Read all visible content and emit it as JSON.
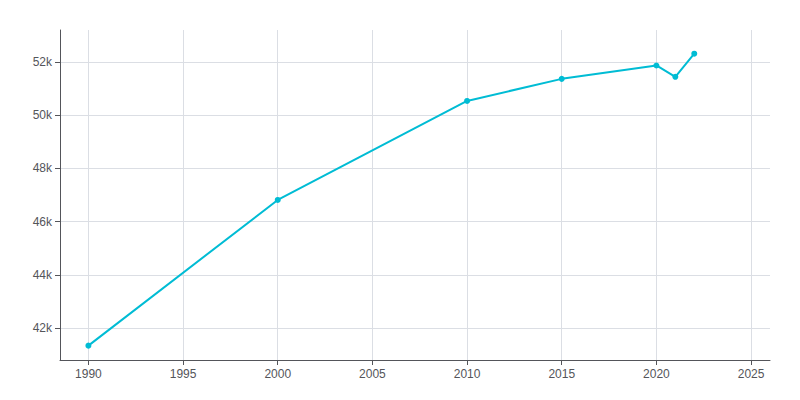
{
  "chart_data": {
    "type": "line",
    "x": [
      1990,
      2000,
      2010,
      2015,
      2020,
      2021,
      2022
    ],
    "values": [
      41340,
      46815,
      50534,
      51364,
      51867,
      51442,
      52311
    ],
    "color": "#00bcd4",
    "marker": "circle",
    "xlim": [
      1988.5,
      2026
    ],
    "xticks": [
      1990,
      1995,
      2000,
      2005,
      2010,
      2015,
      2020,
      2025
    ],
    "ylim": [
      40800,
      53200
    ],
    "yticks": [
      {
        "value": 42000,
        "label": "42k"
      },
      {
        "value": 44000,
        "label": "44k"
      },
      {
        "value": 46000,
        "label": "46k"
      },
      {
        "value": 48000,
        "label": "48k"
      },
      {
        "value": 50000,
        "label": "50k"
      },
      {
        "value": 52000,
        "label": "52k"
      }
    ],
    "grid": true
  }
}
